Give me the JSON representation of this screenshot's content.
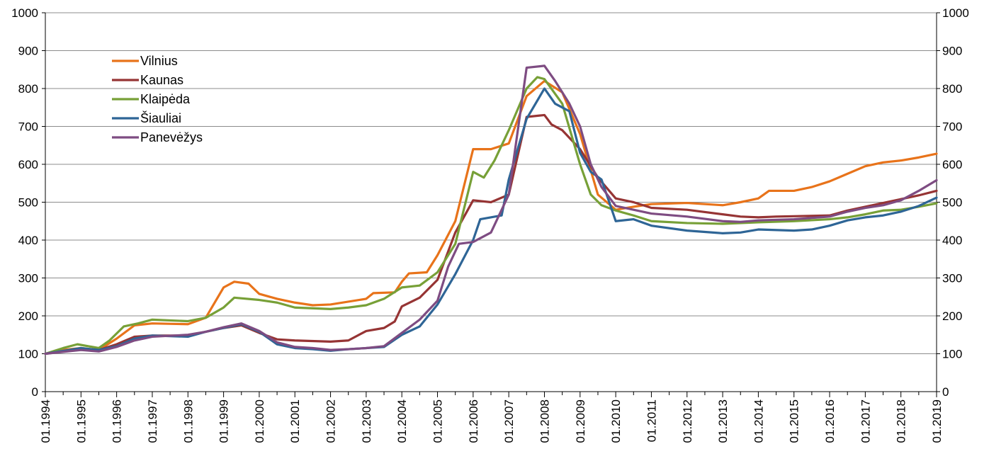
{
  "chart_data": {
    "type": "line",
    "title": "",
    "xlabel": "",
    "ylabel": "",
    "ylim": [
      0,
      1000
    ],
    "y_ticks": [
      0,
      100,
      200,
      300,
      400,
      500,
      600,
      700,
      800,
      900,
      1000
    ],
    "y_axes": [
      "left",
      "right"
    ],
    "xlim": [
      1994,
      2019
    ],
    "x_ticks": [
      "01.1994",
      "01.1995",
      "01.1996",
      "01.1997",
      "01.1998",
      "01.1999",
      "01.2000",
      "01.2001",
      "01.2002",
      "01.2003",
      "01.2004",
      "01.2005",
      "01.2006",
      "01.2007",
      "01.2008",
      "01.2009",
      "01.2010",
      "01.2011",
      "01.2012",
      "01.2013",
      "01.2014",
      "01.2015",
      "01.2016",
      "01.2017",
      "01.2018",
      "01.2019"
    ],
    "grid": true,
    "legend_position": "top-left",
    "series": [
      {
        "name": "Vilnius",
        "color": "#E8731A",
        "points": [
          [
            1994,
            100
          ],
          [
            1994.5,
            110
          ],
          [
            1995,
            115
          ],
          [
            1995.5,
            110
          ],
          [
            1996,
            140
          ],
          [
            1996.5,
            175
          ],
          [
            1997,
            180
          ],
          [
            1998,
            178
          ],
          [
            1998.5,
            195
          ],
          [
            1999,
            275
          ],
          [
            1999.3,
            290
          ],
          [
            1999.7,
            285
          ],
          [
            2000,
            258
          ],
          [
            2000.5,
            245
          ],
          [
            2001,
            235
          ],
          [
            2001.5,
            228
          ],
          [
            2002,
            230
          ],
          [
            2003,
            245
          ],
          [
            2003.2,
            260
          ],
          [
            2003.8,
            262
          ],
          [
            2004,
            290
          ],
          [
            2004.2,
            312
          ],
          [
            2004.7,
            315
          ],
          [
            2005,
            360
          ],
          [
            2005.5,
            450
          ],
          [
            2006,
            640
          ],
          [
            2006.5,
            640
          ],
          [
            2007,
            655
          ],
          [
            2007.5,
            780
          ],
          [
            2008,
            820
          ],
          [
            2008.5,
            790
          ],
          [
            2009,
            680
          ],
          [
            2009.5,
            520
          ],
          [
            2010,
            480
          ],
          [
            2010.5,
            488
          ],
          [
            2011,
            495
          ],
          [
            2012,
            498
          ],
          [
            2013,
            492
          ],
          [
            2013.5,
            500
          ],
          [
            2014,
            510
          ],
          [
            2014.3,
            530
          ],
          [
            2015,
            530
          ],
          [
            2015.5,
            540
          ],
          [
            2016,
            555
          ],
          [
            2016.5,
            575
          ],
          [
            2017,
            595
          ],
          [
            2017.5,
            605
          ],
          [
            2018,
            610
          ],
          [
            2018.5,
            618
          ],
          [
            2019,
            628
          ]
        ]
      },
      {
        "name": "Kaunas",
        "color": "#963434",
        "points": [
          [
            1994,
            100
          ],
          [
            1995,
            112
          ],
          [
            1995.5,
            110
          ],
          [
            1996,
            125
          ],
          [
            1996.5,
            145
          ],
          [
            1997,
            148
          ],
          [
            1998,
            148
          ],
          [
            1998.5,
            158
          ],
          [
            1999,
            168
          ],
          [
            1999.5,
            175
          ],
          [
            2000,
            155
          ],
          [
            2000.5,
            138
          ],
          [
            2001,
            135
          ],
          [
            2002,
            132
          ],
          [
            2002.5,
            135
          ],
          [
            2003,
            160
          ],
          [
            2003.5,
            168
          ],
          [
            2003.8,
            185
          ],
          [
            2004,
            225
          ],
          [
            2004.5,
            248
          ],
          [
            2005,
            295
          ],
          [
            2005.5,
            420
          ],
          [
            2006,
            505
          ],
          [
            2006.5,
            500
          ],
          [
            2007,
            520
          ],
          [
            2007.5,
            725
          ],
          [
            2008,
            730
          ],
          [
            2008.2,
            705
          ],
          [
            2008.5,
            690
          ],
          [
            2009,
            640
          ],
          [
            2009.5,
            565
          ],
          [
            2010,
            510
          ],
          [
            2010.5,
            500
          ],
          [
            2011,
            485
          ],
          [
            2012,
            480
          ],
          [
            2013,
            468
          ],
          [
            2013.5,
            462
          ],
          [
            2014,
            460
          ],
          [
            2014.5,
            462
          ],
          [
            2015,
            463
          ],
          [
            2016,
            465
          ],
          [
            2016.5,
            478
          ],
          [
            2017,
            488
          ],
          [
            2017.5,
            498
          ],
          [
            2018,
            508
          ],
          [
            2018.5,
            518
          ],
          [
            2019,
            530
          ]
        ]
      },
      {
        "name": "Klaipėda",
        "color": "#77A037",
        "points": [
          [
            1994,
            100
          ],
          [
            1994.5,
            115
          ],
          [
            1994.9,
            125
          ],
          [
            1995.2,
            120
          ],
          [
            1995.5,
            115
          ],
          [
            1995.8,
            135
          ],
          [
            1996.2,
            172
          ],
          [
            1996.6,
            180
          ],
          [
            1997,
            190
          ],
          [
            1997.5,
            188
          ],
          [
            1998,
            186
          ],
          [
            1998.5,
            195
          ],
          [
            1999,
            222
          ],
          [
            1999.3,
            248
          ],
          [
            2000,
            242
          ],
          [
            2000.5,
            235
          ],
          [
            2001,
            222
          ],
          [
            2002,
            218
          ],
          [
            2002.5,
            222
          ],
          [
            2003,
            228
          ],
          [
            2003.5,
            245
          ],
          [
            2004,
            275
          ],
          [
            2004.5,
            280
          ],
          [
            2005,
            315
          ],
          [
            2005.5,
            390
          ],
          [
            2006,
            580
          ],
          [
            2006.3,
            565
          ],
          [
            2006.6,
            610
          ],
          [
            2007,
            690
          ],
          [
            2007.5,
            800
          ],
          [
            2007.8,
            830
          ],
          [
            2008,
            825
          ],
          [
            2008.5,
            760
          ],
          [
            2009,
            600
          ],
          [
            2009.3,
            520
          ],
          [
            2009.6,
            492
          ],
          [
            2010,
            478
          ],
          [
            2010.5,
            465
          ],
          [
            2011,
            450
          ],
          [
            2012,
            445
          ],
          [
            2013,
            443
          ],
          [
            2014,
            447
          ],
          [
            2015,
            450
          ],
          [
            2016,
            455
          ],
          [
            2016.5,
            460
          ],
          [
            2017,
            468
          ],
          [
            2017.5,
            478
          ],
          [
            2018,
            480
          ],
          [
            2018.5,
            488
          ],
          [
            2019,
            497
          ]
        ]
      },
      {
        "name": "Šiauliai",
        "color": "#2E6596",
        "points": [
          [
            1994,
            100
          ],
          [
            1995,
            115
          ],
          [
            1995.5,
            110
          ],
          [
            1996,
            120
          ],
          [
            1996.5,
            140
          ],
          [
            1997,
            148
          ],
          [
            1998,
            145
          ],
          [
            1998.5,
            158
          ],
          [
            1999,
            168
          ],
          [
            1999.5,
            178
          ],
          [
            2000,
            158
          ],
          [
            2000.5,
            125
          ],
          [
            2001,
            115
          ],
          [
            2001.5,
            112
          ],
          [
            2002,
            108
          ],
          [
            2002.5,
            112
          ],
          [
            2003,
            115
          ],
          [
            2003.5,
            118
          ],
          [
            2004,
            150
          ],
          [
            2004.5,
            172
          ],
          [
            2005,
            230
          ],
          [
            2005.5,
            310
          ],
          [
            2006,
            400
          ],
          [
            2006.2,
            455
          ],
          [
            2006.8,
            465
          ],
          [
            2007,
            560
          ],
          [
            2007.5,
            720
          ],
          [
            2008,
            800
          ],
          [
            2008.3,
            760
          ],
          [
            2008.7,
            740
          ],
          [
            2009,
            630
          ],
          [
            2009.3,
            580
          ],
          [
            2009.6,
            560
          ],
          [
            2010,
            450
          ],
          [
            2010.5,
            455
          ],
          [
            2011,
            438
          ],
          [
            2012,
            425
          ],
          [
            2013,
            418
          ],
          [
            2013.5,
            420
          ],
          [
            2014,
            428
          ],
          [
            2015,
            425
          ],
          [
            2015.5,
            428
          ],
          [
            2016,
            438
          ],
          [
            2016.5,
            452
          ],
          [
            2017,
            460
          ],
          [
            2017.5,
            465
          ],
          [
            2018,
            475
          ],
          [
            2018.5,
            490
          ],
          [
            2019,
            512
          ]
        ]
      },
      {
        "name": "Panevėžys",
        "color": "#7E4C82",
        "points": [
          [
            1994,
            100
          ],
          [
            1995,
            110
          ],
          [
            1995.5,
            106
          ],
          [
            1996,
            118
          ],
          [
            1996.5,
            135
          ],
          [
            1997,
            145
          ],
          [
            1998,
            150
          ],
          [
            1998.5,
            158
          ],
          [
            1999,
            170
          ],
          [
            1999.5,
            180
          ],
          [
            2000,
            160
          ],
          [
            2000.5,
            130
          ],
          [
            2001,
            118
          ],
          [
            2001.5,
            115
          ],
          [
            2002,
            110
          ],
          [
            2002.5,
            112
          ],
          [
            2003,
            115
          ],
          [
            2003.5,
            120
          ],
          [
            2004,
            155
          ],
          [
            2004.5,
            190
          ],
          [
            2005,
            240
          ],
          [
            2005.3,
            330
          ],
          [
            2005.6,
            390
          ],
          [
            2006,
            395
          ],
          [
            2006.5,
            420
          ],
          [
            2007,
            520
          ],
          [
            2007.5,
            855
          ],
          [
            2008,
            860
          ],
          [
            2008.3,
            820
          ],
          [
            2008.7,
            760
          ],
          [
            2009,
            700
          ],
          [
            2009.3,
            600
          ],
          [
            2009.6,
            540
          ],
          [
            2010,
            490
          ],
          [
            2010.5,
            480
          ],
          [
            2011,
            470
          ],
          [
            2012,
            462
          ],
          [
            2013,
            450
          ],
          [
            2013.5,
            448
          ],
          [
            2014,
            452
          ],
          [
            2015,
            455
          ],
          [
            2016,
            462
          ],
          [
            2016.5,
            475
          ],
          [
            2017,
            485
          ],
          [
            2017.5,
            492
          ],
          [
            2018,
            505
          ],
          [
            2018.5,
            530
          ],
          [
            2019,
            558
          ]
        ]
      }
    ]
  }
}
